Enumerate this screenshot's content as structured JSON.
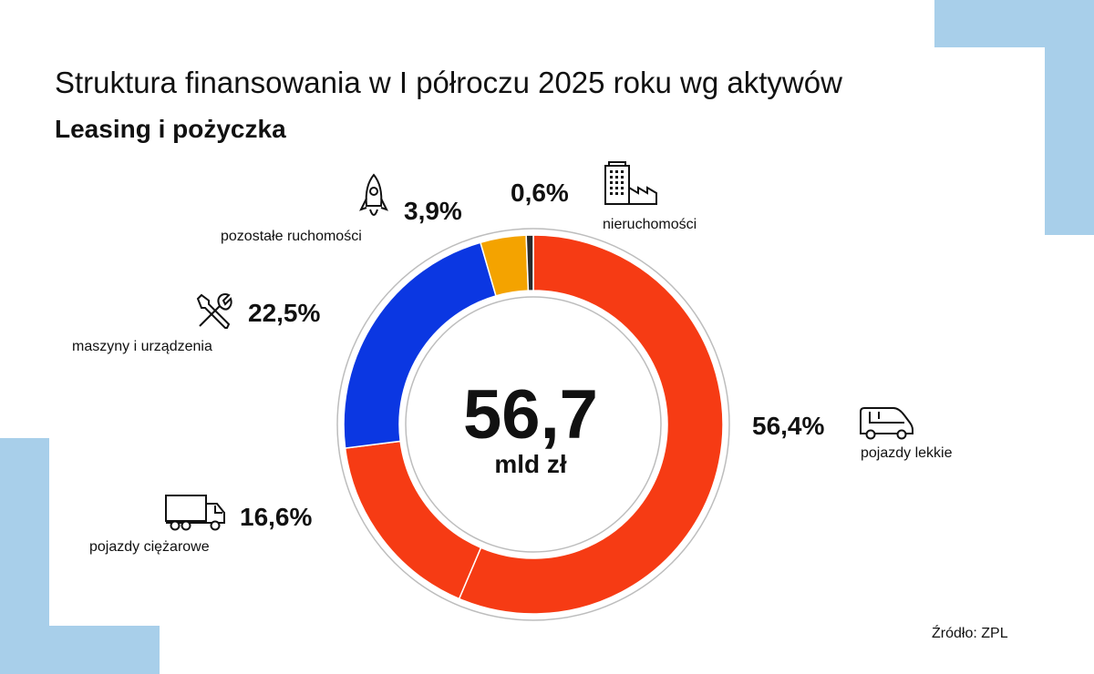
{
  "header": {
    "title": "Struktura finansowania w I półroczu 2025 roku wg aktywów",
    "subtitle": "Leasing i pożyczka"
  },
  "center": {
    "value": "56,7",
    "unit": "mld zł"
  },
  "source": "Źródło: ZPL",
  "colors": {
    "decor": "#a8cfea",
    "pojazdy_lekkie": "#f63b14",
    "pojazdy_ciezarowe": "#f63b14",
    "maszyny": "#0b37e2",
    "pozostale_ruchomosci": "#f4a300",
    "nieruchomosci": "#2a2a2a"
  },
  "chart_data": {
    "type": "pie",
    "total_label": "56,7 mld zł",
    "slices": [
      {
        "label": "pojazdy lekkie",
        "value": 56.4,
        "value_label": "56,4%",
        "icon": "van-icon",
        "color": "#f63b14"
      },
      {
        "label": "pojazdy ciężarowe",
        "value": 16.6,
        "value_label": "16,6%",
        "icon": "truck-icon",
        "color": "#f63b14"
      },
      {
        "label": "maszyny i urządzenia",
        "value": 22.5,
        "value_label": "22,5%",
        "icon": "tools-icon",
        "color": "#0b37e2"
      },
      {
        "label": "pozostałe ruchomości",
        "value": 3.9,
        "value_label": "3,9%",
        "icon": "rocket-icon",
        "color": "#f4a300"
      },
      {
        "label": "nieruchomości",
        "value": 0.6,
        "value_label": "0,6%",
        "icon": "buildings-icon",
        "color": "#2a2a2a"
      }
    ]
  }
}
